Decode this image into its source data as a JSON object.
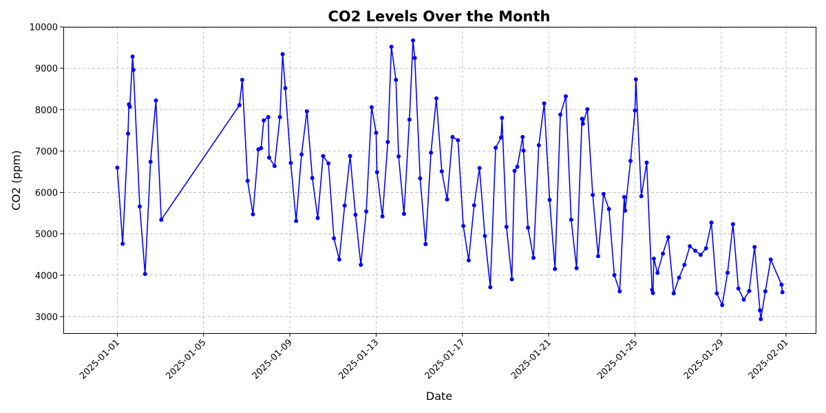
{
  "chart_data": {
    "type": "line",
    "title": "CO2 Levels Over the Month",
    "xlabel": "Date",
    "ylabel": "CO2 (ppm)",
    "x_tick_labels": [
      "2025-01-01",
      "2025-01-05",
      "2025-01-09",
      "2025-01-13",
      "2025-01-17",
      "2025-01-21",
      "2025-01-25",
      "2025-01-29",
      "2025-02-01"
    ],
    "y_tick_labels": [
      "3000",
      "4000",
      "5000",
      "6000",
      "7000",
      "8000",
      "9000",
      "10000"
    ],
    "xlim": [
      "2024-12-29T12:00",
      "2025-02-02T09:00"
    ],
    "ylim": [
      2600,
      10000
    ],
    "grid": true,
    "series": [
      {
        "color": "#0000ff",
        "marker": "circle",
        "points": [
          [
            "2025-01-01T00:00",
            6600
          ],
          [
            "2025-01-01T06:00",
            4760
          ],
          [
            "2025-01-01T12:00",
            7420
          ],
          [
            "2025-01-01T13:00",
            8130
          ],
          [
            "2025-01-01T14:00",
            8070
          ],
          [
            "2025-01-01T17:00",
            9280
          ],
          [
            "2025-01-01T18:00",
            8960
          ],
          [
            "2025-01-02T01:00",
            5660
          ],
          [
            "2025-01-02T07:00",
            4030
          ],
          [
            "2025-01-02T13:00",
            6740
          ],
          [
            "2025-01-02T19:00",
            8220
          ],
          [
            "2025-01-03T01:00",
            5340
          ],
          [
            "2025-01-06T16:00",
            8110
          ],
          [
            "2025-01-06T19:00",
            8720
          ],
          [
            "2025-01-07T01:00",
            6280
          ],
          [
            "2025-01-07T07:00",
            5470
          ],
          [
            "2025-01-07T13:00",
            7040
          ],
          [
            "2025-01-07T16:00",
            7070
          ],
          [
            "2025-01-07T19:00",
            7740
          ],
          [
            "2025-01-08T00:00",
            7820
          ],
          [
            "2025-01-08T01:00",
            6840
          ],
          [
            "2025-01-08T07:00",
            6640
          ],
          [
            "2025-01-08T13:00",
            7820
          ],
          [
            "2025-01-08T16:00",
            9340
          ],
          [
            "2025-01-08T19:00",
            8520
          ],
          [
            "2025-01-09T01:00",
            6710
          ],
          [
            "2025-01-09T07:00",
            5310
          ],
          [
            "2025-01-09T13:00",
            6920
          ],
          [
            "2025-01-09T19:00",
            7960
          ],
          [
            "2025-01-10T01:00",
            6350
          ],
          [
            "2025-01-10T07:00",
            5380
          ],
          [
            "2025-01-10T13:00",
            6880
          ],
          [
            "2025-01-10T19:00",
            6700
          ],
          [
            "2025-01-11T01:00",
            4890
          ],
          [
            "2025-01-11T07:00",
            4380
          ],
          [
            "2025-01-11T13:00",
            5680
          ],
          [
            "2025-01-11T19:00",
            6880
          ],
          [
            "2025-01-12T01:00",
            5460
          ],
          [
            "2025-01-12T07:00",
            4250
          ],
          [
            "2025-01-12T13:00",
            5540
          ],
          [
            "2025-01-12T19:00",
            8060
          ],
          [
            "2025-01-13T00:00",
            7440
          ],
          [
            "2025-01-13T01:00",
            6490
          ],
          [
            "2025-01-13T07:00",
            5420
          ],
          [
            "2025-01-13T13:00",
            7220
          ],
          [
            "2025-01-13T17:00",
            9520
          ],
          [
            "2025-01-13T22:00",
            8720
          ],
          [
            "2025-01-14T01:00",
            6870
          ],
          [
            "2025-01-14T07:00",
            5480
          ],
          [
            "2025-01-14T13:00",
            7760
          ],
          [
            "2025-01-14T17:00",
            9670
          ],
          [
            "2025-01-14T19:00",
            9250
          ],
          [
            "2025-01-15T01:00",
            6340
          ],
          [
            "2025-01-15T07:00",
            4750
          ],
          [
            "2025-01-15T13:00",
            6960
          ],
          [
            "2025-01-15T19:00",
            8270
          ],
          [
            "2025-01-16T01:00",
            6510
          ],
          [
            "2025-01-16T07:00",
            5830
          ],
          [
            "2025-01-16T13:00",
            7340
          ],
          [
            "2025-01-16T19:00",
            7260
          ],
          [
            "2025-01-17T01:00",
            5190
          ],
          [
            "2025-01-17T07:00",
            4360
          ],
          [
            "2025-01-17T13:00",
            5690
          ],
          [
            "2025-01-17T19:00",
            6590
          ],
          [
            "2025-01-18T01:00",
            4950
          ],
          [
            "2025-01-18T07:00",
            3710
          ],
          [
            "2025-01-18T13:00",
            7080
          ],
          [
            "2025-01-18T19:00",
            7330
          ],
          [
            "2025-01-18T20:00",
            7800
          ],
          [
            "2025-01-19T01:00",
            5170
          ],
          [
            "2025-01-19T07:00",
            3900
          ],
          [
            "2025-01-19T10:00",
            6520
          ],
          [
            "2025-01-19T13:00",
            6620
          ],
          [
            "2025-01-19T19:00",
            7340
          ],
          [
            "2025-01-19T20:00",
            7010
          ],
          [
            "2025-01-20T01:00",
            5150
          ],
          [
            "2025-01-20T07:00",
            4420
          ],
          [
            "2025-01-20T13:00",
            7140
          ],
          [
            "2025-01-20T19:00",
            8150
          ],
          [
            "2025-01-21T01:00",
            5820
          ],
          [
            "2025-01-21T07:00",
            4150
          ],
          [
            "2025-01-21T13:00",
            7880
          ],
          [
            "2025-01-21T19:00",
            8320
          ],
          [
            "2025-01-22T01:00",
            5340
          ],
          [
            "2025-01-22T07:00",
            4170
          ],
          [
            "2025-01-22T13:00",
            7780
          ],
          [
            "2025-01-22T14:00",
            7660
          ],
          [
            "2025-01-22T19:00",
            8010
          ],
          [
            "2025-01-23T01:00",
            5940
          ],
          [
            "2025-01-23T07:00",
            4460
          ],
          [
            "2025-01-23T13:00",
            5960
          ],
          [
            "2025-01-23T19:00",
            5600
          ],
          [
            "2025-01-24T01:00",
            4000
          ],
          [
            "2025-01-24T07:00",
            3610
          ],
          [
            "2025-01-24T12:00",
            5890
          ],
          [
            "2025-01-24T13:00",
            5560
          ],
          [
            "2025-01-24T19:00",
            6760
          ],
          [
            "2025-01-25T00:00",
            7980
          ],
          [
            "2025-01-25T01:00",
            8730
          ],
          [
            "2025-01-25T07:00",
            5910
          ],
          [
            "2025-01-25T13:00",
            6720
          ],
          [
            "2025-01-25T19:00",
            3650
          ],
          [
            "2025-01-25T20:00",
            3570
          ],
          [
            "2025-01-25T21:00",
            4400
          ],
          [
            "2025-01-26T01:00",
            4060
          ],
          [
            "2025-01-26T07:00",
            4520
          ],
          [
            "2025-01-26T13:00",
            4920
          ],
          [
            "2025-01-26T19:00",
            3560
          ],
          [
            "2025-01-27T01:00",
            3940
          ],
          [
            "2025-01-27T07:00",
            4250
          ],
          [
            "2025-01-27T13:00",
            4700
          ],
          [
            "2025-01-27T19:00",
            4590
          ],
          [
            "2025-01-28T01:00",
            4490
          ],
          [
            "2025-01-28T07:00",
            4650
          ],
          [
            "2025-01-28T13:00",
            5270
          ],
          [
            "2025-01-28T19:00",
            3560
          ],
          [
            "2025-01-29T01:00",
            3280
          ],
          [
            "2025-01-29T07:00",
            4060
          ],
          [
            "2025-01-29T13:00",
            5230
          ],
          [
            "2025-01-29T19:00",
            3680
          ],
          [
            "2025-01-30T01:00",
            3410
          ],
          [
            "2025-01-30T07:00",
            3620
          ],
          [
            "2025-01-30T13:00",
            4680
          ],
          [
            "2025-01-30T19:00",
            3150
          ],
          [
            "2025-01-30T20:00",
            2940
          ],
          [
            "2025-01-31T01:00",
            3610
          ],
          [
            "2025-01-31T07:00",
            4380
          ],
          [
            "2025-01-31T19:00",
            3770
          ],
          [
            "2025-01-31T20:00",
            3590
          ]
        ]
      }
    ]
  }
}
